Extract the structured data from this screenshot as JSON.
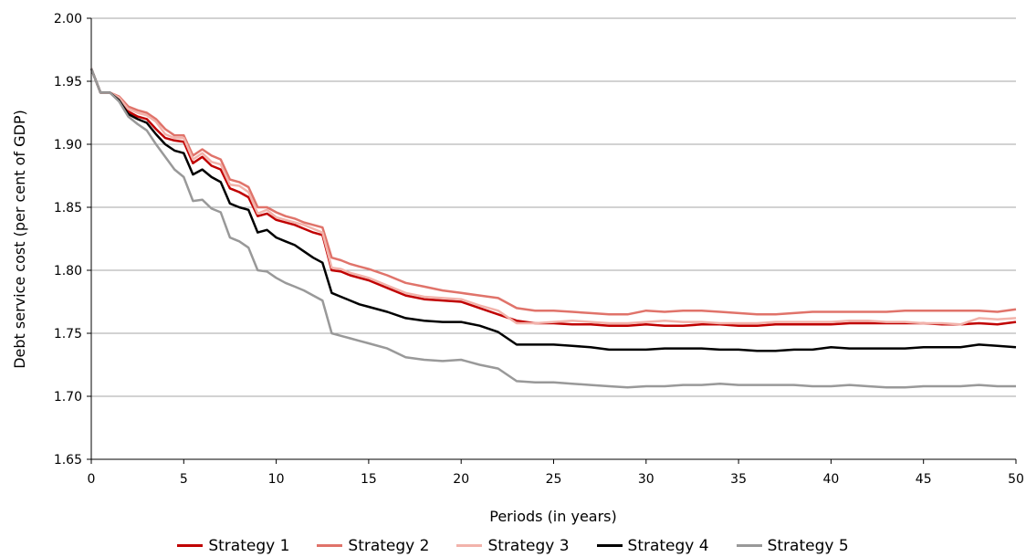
{
  "chart_data": {
    "type": "line",
    "title": "",
    "xlabel": "Periods (in years)",
    "ylabel": "Debt service cost (per cent of GDP)",
    "xlim": [
      0,
      50
    ],
    "ylim": [
      1.65,
      2.0
    ],
    "xticks": [
      "0",
      "5",
      "10",
      "15",
      "20",
      "25",
      "30",
      "35",
      "40",
      "45",
      "50"
    ],
    "yticks": [
      "1.65",
      "1.70",
      "1.75",
      "1.80",
      "1.85",
      "1.90",
      "1.95",
      "2.00"
    ],
    "grid": "horizontal",
    "legend_position": "bottom",
    "x": [
      0,
      0.5,
      1,
      1.5,
      2,
      2.5,
      3,
      3.5,
      4,
      4.5,
      5,
      5.5,
      6,
      6.5,
      7,
      7.5,
      8,
      8.5,
      9,
      9.5,
      10,
      10.5,
      11,
      11.5,
      12,
      12.5,
      13,
      13.5,
      14,
      14.5,
      15,
      16,
      17,
      18,
      19,
      20,
      21,
      22,
      23,
      24,
      25,
      26,
      27,
      28,
      29,
      30,
      31,
      32,
      33,
      34,
      35,
      36,
      37,
      38,
      39,
      40,
      41,
      42,
      43,
      44,
      45,
      46,
      47,
      48,
      49,
      50
    ],
    "series": [
      {
        "name": "Strategy 1",
        "color": "#c00000",
        "values": [
          1.96,
          1.941,
          1.941,
          1.936,
          1.926,
          1.922,
          1.92,
          1.912,
          1.905,
          1.903,
          1.902,
          1.885,
          1.89,
          1.883,
          1.88,
          1.865,
          1.862,
          1.858,
          1.843,
          1.845,
          1.84,
          1.838,
          1.836,
          1.833,
          1.83,
          1.828,
          1.8,
          1.799,
          1.796,
          1.794,
          1.792,
          1.786,
          1.78,
          1.777,
          1.776,
          1.775,
          1.77,
          1.765,
          1.76,
          1.758,
          1.758,
          1.757,
          1.757,
          1.756,
          1.756,
          1.757,
          1.756,
          1.756,
          1.757,
          1.757,
          1.756,
          1.756,
          1.757,
          1.757,
          1.757,
          1.757,
          1.758,
          1.758,
          1.758,
          1.758,
          1.758,
          1.757,
          1.757,
          1.758,
          1.757,
          1.759
        ]
      },
      {
        "name": "Strategy 2",
        "color": "#e0736a",
        "values": [
          1.96,
          1.941,
          1.941,
          1.938,
          1.93,
          1.927,
          1.925,
          1.92,
          1.912,
          1.907,
          1.907,
          1.891,
          1.896,
          1.891,
          1.888,
          1.872,
          1.87,
          1.866,
          1.85,
          1.85,
          1.846,
          1.843,
          1.841,
          1.838,
          1.836,
          1.834,
          1.81,
          1.808,
          1.805,
          1.803,
          1.801,
          1.796,
          1.79,
          1.787,
          1.784,
          1.782,
          1.78,
          1.778,
          1.77,
          1.768,
          1.768,
          1.767,
          1.766,
          1.765,
          1.765,
          1.768,
          1.767,
          1.768,
          1.768,
          1.767,
          1.766,
          1.765,
          1.765,
          1.766,
          1.767,
          1.767,
          1.767,
          1.767,
          1.767,
          1.768,
          1.768,
          1.768,
          1.768,
          1.768,
          1.767,
          1.769
        ]
      },
      {
        "name": "Strategy 3",
        "color": "#f2b3ab",
        "values": [
          1.96,
          1.941,
          1.941,
          1.937,
          1.928,
          1.925,
          1.923,
          1.918,
          1.908,
          1.905,
          1.905,
          1.888,
          1.893,
          1.886,
          1.884,
          1.868,
          1.867,
          1.862,
          1.845,
          1.848,
          1.842,
          1.84,
          1.838,
          1.836,
          1.833,
          1.83,
          1.802,
          1.801,
          1.798,
          1.796,
          1.794,
          1.788,
          1.782,
          1.779,
          1.778,
          1.777,
          1.772,
          1.768,
          1.758,
          1.758,
          1.759,
          1.76,
          1.759,
          1.758,
          1.758,
          1.759,
          1.76,
          1.759,
          1.759,
          1.758,
          1.758,
          1.758,
          1.759,
          1.759,
          1.759,
          1.759,
          1.76,
          1.76,
          1.759,
          1.759,
          1.758,
          1.758,
          1.757,
          1.762,
          1.761,
          1.762
        ]
      },
      {
        "name": "Strategy 4",
        "color": "#000000",
        "values": [
          1.96,
          1.941,
          1.941,
          1.935,
          1.924,
          1.92,
          1.917,
          1.908,
          1.9,
          1.895,
          1.893,
          1.876,
          1.88,
          1.874,
          1.87,
          1.853,
          1.85,
          1.848,
          1.83,
          1.832,
          1.826,
          1.823,
          1.82,
          1.815,
          1.81,
          1.806,
          1.782,
          1.779,
          1.776,
          1.773,
          1.771,
          1.767,
          1.762,
          1.76,
          1.759,
          1.759,
          1.756,
          1.751,
          1.741,
          1.741,
          1.741,
          1.74,
          1.739,
          1.737,
          1.737,
          1.737,
          1.738,
          1.738,
          1.738,
          1.737,
          1.737,
          1.736,
          1.736,
          1.737,
          1.737,
          1.739,
          1.738,
          1.738,
          1.738,
          1.738,
          1.739,
          1.739,
          1.739,
          1.741,
          1.74,
          1.739
        ]
      },
      {
        "name": "Strategy 5",
        "color": "#999999",
        "values": [
          1.96,
          1.941,
          1.941,
          1.934,
          1.922,
          1.916,
          1.911,
          1.9,
          1.89,
          1.88,
          1.874,
          1.855,
          1.856,
          1.849,
          1.846,
          1.826,
          1.823,
          1.818,
          1.8,
          1.799,
          1.794,
          1.79,
          1.787,
          1.784,
          1.78,
          1.776,
          1.75,
          1.748,
          1.746,
          1.744,
          1.742,
          1.738,
          1.731,
          1.729,
          1.728,
          1.729,
          1.725,
          1.722,
          1.712,
          1.711,
          1.711,
          1.71,
          1.709,
          1.708,
          1.707,
          1.708,
          1.708,
          1.709,
          1.709,
          1.71,
          1.709,
          1.709,
          1.709,
          1.709,
          1.708,
          1.708,
          1.709,
          1.708,
          1.707,
          1.707,
          1.708,
          1.708,
          1.708,
          1.709,
          1.708,
          1.708
        ]
      }
    ]
  }
}
